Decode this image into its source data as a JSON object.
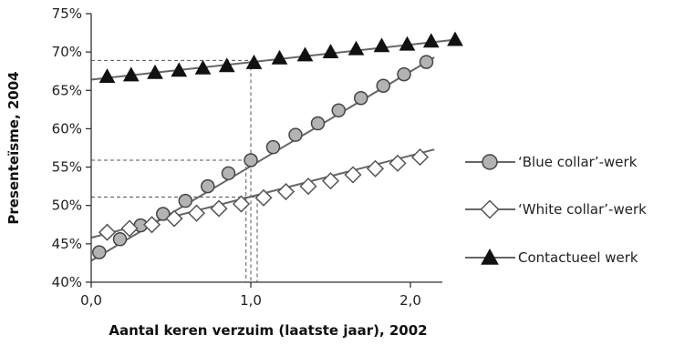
{
  "chart_data": {
    "type": "line",
    "title": "",
    "xlabel": "Aantal keren verzuim (laatste jaar), 2002",
    "ylabel": "Presenteïsme, 2004",
    "xlim": [
      0,
      2.2
    ],
    "ylim": [
      40,
      75
    ],
    "x_ticks": [
      0,
      1,
      2
    ],
    "x_tick_labels": [
      "0,0",
      "1,0",
      "2,0"
    ],
    "y_ticks": [
      40,
      45,
      50,
      55,
      60,
      65,
      70,
      75
    ],
    "y_tick_labels": [
      "40%",
      "45%",
      "50%",
      "55%",
      "60%",
      "65%",
      "70%",
      "75%"
    ],
    "grid": false,
    "legend_position": "right",
    "series": [
      {
        "name": "‘Blue collar’-werk",
        "marker": "circle",
        "fill": "#b3b3b3",
        "x": [
          0.05,
          0.18,
          0.31,
          0.45,
          0.59,
          0.73,
          0.86,
          1.0,
          1.14,
          1.28,
          1.42,
          1.55,
          1.69,
          1.83,
          1.96,
          2.1
        ],
        "y": [
          43.9,
          45.6,
          47.4,
          48.9,
          50.6,
          52.5,
          54.2,
          55.9,
          57.6,
          59.2,
          60.7,
          62.4,
          64.0,
          65.6,
          67.1,
          68.7
        ],
        "trend": {
          "x": [
            0,
            2.15
          ],
          "y": [
            42.8,
            69.3
          ]
        }
      },
      {
        "name": "‘White collar’-werk",
        "marker": "diamond",
        "fill": "#ffffff",
        "x": [
          0.1,
          0.24,
          0.38,
          0.52,
          0.66,
          0.8,
          0.94,
          1.08,
          1.22,
          1.36,
          1.5,
          1.64,
          1.78,
          1.92,
          2.06
        ],
        "y": [
          46.5,
          47.0,
          47.5,
          48.3,
          49.0,
          49.6,
          50.2,
          51.0,
          51.8,
          52.5,
          53.2,
          54.0,
          54.8,
          55.5,
          56.3
        ],
        "trend": {
          "x": [
            0,
            2.15
          ],
          "y": [
            45.8,
            57.3
          ]
        }
      },
      {
        "name": "Contactueel werk",
        "marker": "triangle",
        "fill": "#111111",
        "x": [
          0.1,
          0.25,
          0.4,
          0.55,
          0.7,
          0.85,
          1.02,
          1.18,
          1.34,
          1.5,
          1.66,
          1.82,
          1.98,
          2.13,
          2.28
        ],
        "y": [
          66.8,
          67.0,
          67.3,
          67.6,
          67.9,
          68.2,
          68.6,
          69.2,
          69.6,
          70.0,
          70.4,
          70.8,
          71.0,
          71.4,
          71.6
        ],
        "trend": {
          "x": [
            0,
            2.28
          ],
          "y": [
            66.4,
            71.6
          ]
        }
      }
    ],
    "reference_lines": [
      {
        "x": 1.0,
        "y": 68.9
      },
      {
        "x": 0.97,
        "y": 55.9
      },
      {
        "x": 1.04,
        "y": 51.1
      }
    ]
  }
}
